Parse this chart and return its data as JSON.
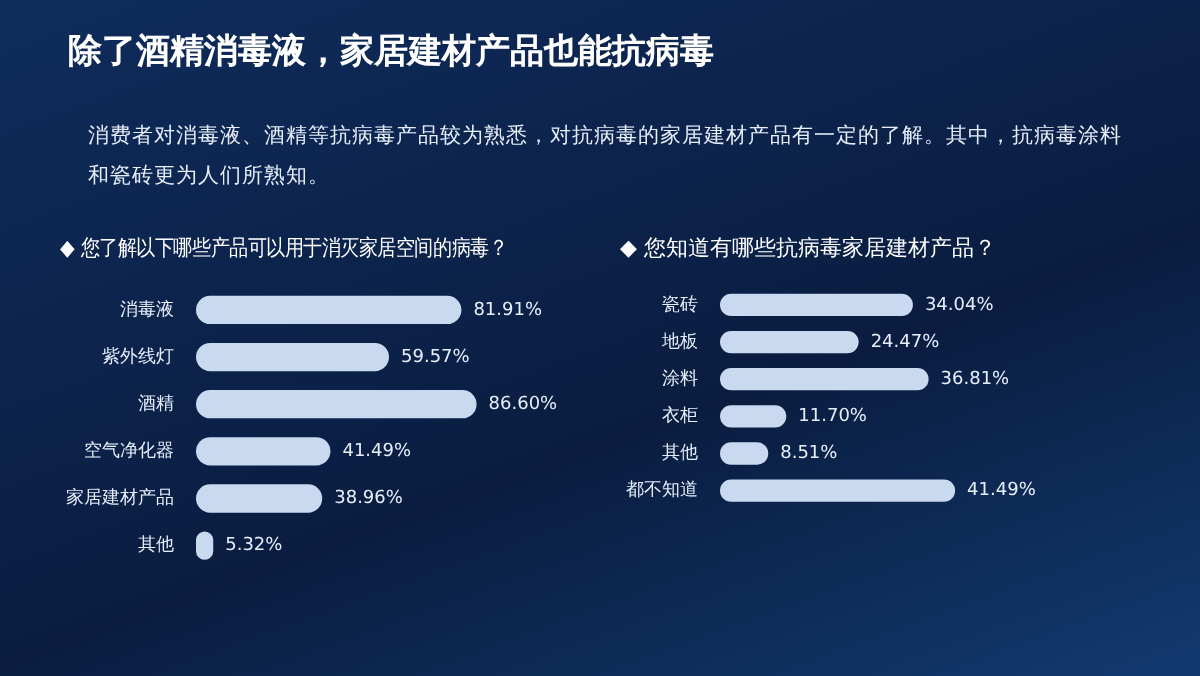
{
  "chart_data": [
    {
      "type": "other",
      "title": "除了酒精消毒液，家居建材产品也能抗病毒",
      "subtitle": "消费者对消毒液、酒精等抗病毒产品较为熟悉，对抗病毒的家居建材产品有一定的了解。其中，抗病毒涂料和瓷砖更为人们所熟知。"
    },
    {
      "type": "bar",
      "orientation": "horizontal",
      "title": "◆ 您了解以下哪些产品可以用于消灭家居空间的病毒？",
      "categories": [
        "消毒液",
        "紫外线灯",
        "酒精",
        "空气净化器",
        "家居建材产品",
        "其他"
      ],
      "values": [
        81.91,
        59.57,
        86.6,
        41.49,
        38.96,
        5.32
      ],
      "value_labels": [
        "81.91%",
        "59.57%",
        "86.60%",
        "41.49%",
        "38.96%",
        "5.32%"
      ],
      "color": "#c9daf0",
      "tick_labels": "y"
    },
    {
      "type": "bar",
      "orientation": "horizontal",
      "title": "◆ 您知道有哪些抗病毒家居建材产品？",
      "categories": [
        "瓷砖",
        "地板",
        "涂料",
        "衣柜",
        "其他",
        "都不知道"
      ],
      "values": [
        34.04,
        24.47,
        36.81,
        11.7,
        8.51,
        41.49
      ],
      "value_labels": [
        "34.04%",
        "24.47%",
        "36.81%",
        "11.70%",
        "8.51%",
        "41.49%"
      ],
      "color": "#c9daf0",
      "tick_labels": "y"
    }
  ]
}
